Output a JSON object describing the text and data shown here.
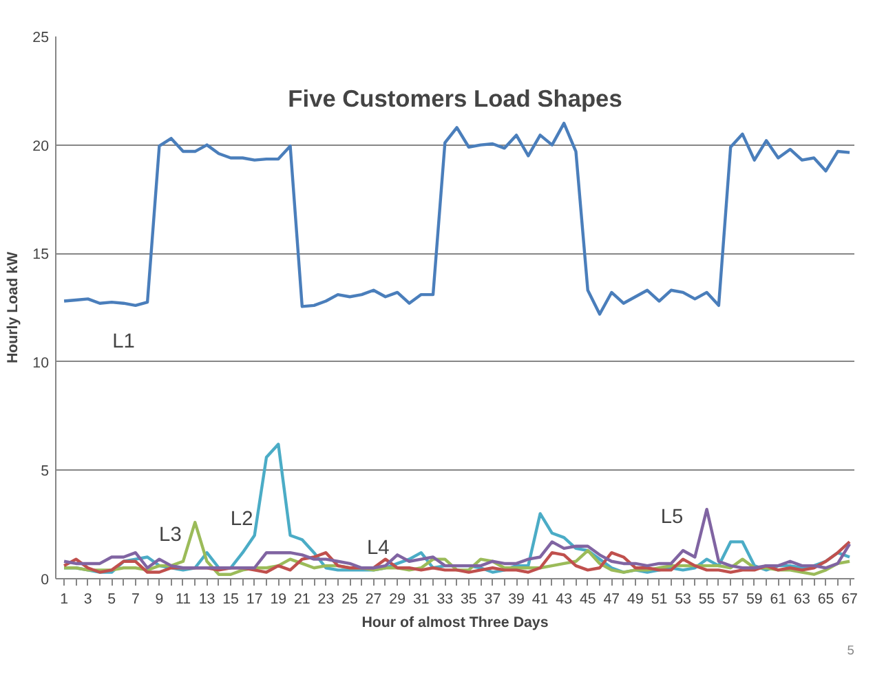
{
  "chart_data": {
    "type": "line",
    "title": "Five Customers Load Shapes",
    "xlabel": "Hour of almost Three Days",
    "ylabel": "Hourly Load kW",
    "x": [
      1,
      2,
      3,
      4,
      5,
      6,
      7,
      8,
      9,
      10,
      11,
      12,
      13,
      14,
      15,
      16,
      17,
      18,
      19,
      20,
      21,
      22,
      23,
      24,
      25,
      26,
      27,
      28,
      29,
      30,
      31,
      32,
      33,
      34,
      35,
      36,
      37,
      38,
      39,
      40,
      41,
      42,
      43,
      44,
      45,
      46,
      47,
      48,
      49,
      50,
      51,
      52,
      53,
      54,
      55,
      56,
      57,
      58,
      59,
      60,
      61,
      62,
      63,
      64,
      65,
      66,
      67
    ],
    "series": [
      {
        "name": "L1",
        "color": "#4a7ebb",
        "values": [
          12.8,
          12.85,
          12.9,
          12.7,
          12.75,
          12.7,
          12.6,
          12.75,
          19.95,
          20.3,
          19.7,
          19.7,
          20.0,
          19.6,
          19.4,
          19.4,
          19.3,
          19.35,
          19.35,
          19.95,
          12.55,
          12.6,
          12.8,
          13.1,
          13.0,
          13.1,
          13.3,
          13.0,
          13.2,
          12.7,
          13.1,
          13.1,
          20.1,
          20.8,
          19.9,
          20.0,
          20.05,
          19.85,
          20.45,
          19.5,
          20.45,
          20.0,
          21.0,
          19.7,
          13.3,
          12.2,
          13.2,
          12.7,
          13.0,
          13.3,
          12.8,
          13.3,
          13.2,
          12.9,
          13.2,
          12.6,
          19.9,
          20.5,
          19.3,
          20.2,
          19.4,
          19.8,
          19.3,
          19.4,
          18.8,
          19.7,
          19.65
        ]
      },
      {
        "name": "L2",
        "color": "#4bacc6",
        "values": [
          0.5,
          0.5,
          0.4,
          0.3,
          0.3,
          0.8,
          0.9,
          1.0,
          0.6,
          0.5,
          0.4,
          0.5,
          1.2,
          0.5,
          0.5,
          1.2,
          2.0,
          5.6,
          6.2,
          2.0,
          1.8,
          1.2,
          0.5,
          0.4,
          0.4,
          0.4,
          0.4,
          0.5,
          0.7,
          0.9,
          1.2,
          0.5,
          0.6,
          0.6,
          0.6,
          0.5,
          0.3,
          0.4,
          0.6,
          0.6,
          3.0,
          2.1,
          1.9,
          1.4,
          1.3,
          0.9,
          0.5,
          0.3,
          0.4,
          0.3,
          0.4,
          0.5,
          0.4,
          0.5,
          0.9,
          0.6,
          1.7,
          1.7,
          0.6,
          0.4,
          0.6,
          0.6,
          0.5,
          0.6,
          0.8,
          1.2,
          1.0
        ]
      },
      {
        "name": "L3",
        "color": "#9bbb59",
        "values": [
          0.5,
          0.5,
          0.4,
          0.4,
          0.4,
          0.5,
          0.5,
          0.4,
          0.6,
          0.6,
          0.8,
          2.6,
          0.8,
          0.2,
          0.2,
          0.4,
          0.5,
          0.5,
          0.6,
          0.9,
          0.7,
          0.5,
          0.6,
          0.6,
          0.5,
          0.5,
          0.4,
          0.5,
          0.5,
          0.4,
          0.5,
          0.9,
          0.9,
          0.4,
          0.4,
          0.9,
          0.8,
          0.5,
          0.5,
          0.5,
          0.5,
          0.6,
          0.7,
          0.8,
          1.3,
          0.7,
          0.4,
          0.3,
          0.4,
          0.4,
          0.5,
          0.6,
          0.6,
          0.6,
          0.6,
          0.6,
          0.5,
          0.9,
          0.5,
          0.5,
          0.4,
          0.4,
          0.3,
          0.2,
          0.4,
          0.7,
          0.8
        ]
      },
      {
        "name": "L4",
        "color": "#c0504d",
        "values": [
          0.6,
          0.9,
          0.5,
          0.3,
          0.4,
          0.8,
          0.8,
          0.3,
          0.3,
          0.5,
          0.5,
          0.5,
          0.5,
          0.4,
          0.5,
          0.5,
          0.4,
          0.3,
          0.6,
          0.4,
          0.9,
          1.0,
          1.2,
          0.6,
          0.5,
          0.5,
          0.5,
          0.9,
          0.5,
          0.5,
          0.4,
          0.5,
          0.4,
          0.4,
          0.3,
          0.4,
          0.5,
          0.4,
          0.4,
          0.3,
          0.5,
          1.2,
          1.1,
          0.6,
          0.4,
          0.5,
          1.2,
          1.0,
          0.5,
          0.5,
          0.4,
          0.4,
          0.9,
          0.6,
          0.4,
          0.4,
          0.3,
          0.4,
          0.4,
          0.6,
          0.4,
          0.5,
          0.4,
          0.5,
          0.8,
          1.2,
          1.7
        ]
      },
      {
        "name": "L5",
        "color": "#8064a2",
        "values": [
          0.8,
          0.7,
          0.7,
          0.7,
          1.0,
          1.0,
          1.2,
          0.5,
          0.9,
          0.6,
          0.5,
          0.5,
          0.5,
          0.5,
          0.5,
          0.5,
          0.5,
          1.2,
          1.2,
          1.2,
          1.1,
          0.9,
          0.9,
          0.8,
          0.7,
          0.5,
          0.5,
          0.6,
          1.1,
          0.8,
          0.9,
          1.0,
          0.6,
          0.6,
          0.6,
          0.6,
          0.8,
          0.7,
          0.7,
          0.9,
          1.0,
          1.7,
          1.4,
          1.5,
          1.5,
          1.1,
          0.8,
          0.7,
          0.7,
          0.6,
          0.7,
          0.7,
          1.3,
          1.0,
          3.2,
          0.8,
          0.6,
          0.5,
          0.5,
          0.6,
          0.6,
          0.8,
          0.6,
          0.6,
          0.5,
          0.7,
          1.6
        ]
      }
    ],
    "annotations": [
      "5"
    ],
    "xlim": [
      0.3,
      67.4
    ],
    "ylim": [
      0,
      25
    ],
    "xticks": [
      1,
      {
        "value": 2,
        "label": null
      },
      3,
      {
        "value": 4,
        "label": null
      },
      5,
      {
        "value": 6,
        "label": null
      },
      7,
      {
        "value": 8,
        "label": null
      },
      9,
      {
        "value": 10,
        "label": null
      },
      11,
      {
        "value": 12,
        "label": null
      },
      13,
      {
        "value": 14,
        "label": null
      },
      15,
      {
        "value": 16,
        "label": null
      },
      17,
      {
        "value": 18,
        "label": null
      },
      19,
      {
        "value": 20,
        "label": null
      },
      21,
      {
        "value": 22,
        "label": null
      },
      23,
      {
        "value": 24,
        "label": null
      },
      25,
      {
        "value": 26,
        "label": null
      },
      27,
      {
        "value": 28,
        "label": null
      },
      29,
      {
        "value": 30,
        "label": null
      },
      31,
      {
        "value": 32,
        "label": null
      },
      33,
      {
        "value": 34,
        "label": null
      },
      35,
      {
        "value": 36,
        "label": null
      },
      37,
      {
        "value": 38,
        "label": null
      },
      39,
      {
        "value": 40,
        "label": null
      },
      41,
      {
        "value": 42,
        "label": null
      },
      43,
      {
        "value": 44,
        "label": null
      },
      45,
      {
        "value": 46,
        "label": null
      },
      47,
      {
        "value": 48,
        "label": null
      },
      49,
      {
        "value": 50,
        "label": null
      },
      51,
      {
        "value": 52,
        "label": null
      },
      53,
      {
        "value": 54,
        "label": null
      },
      55,
      {
        "value": 56,
        "label": null
      },
      57,
      {
        "value": 58,
        "label": null
      },
      59,
      {
        "value": 60,
        "label": null
      },
      61,
      {
        "value": 62,
        "label": null
      },
      63,
      {
        "value": 64,
        "label": null
      },
      65,
      {
        "value": 66,
        "label": null
      },
      67
    ],
    "yticks": [
      0,
      5,
      10,
      15,
      20,
      25
    ],
    "grid": "y"
  }
}
